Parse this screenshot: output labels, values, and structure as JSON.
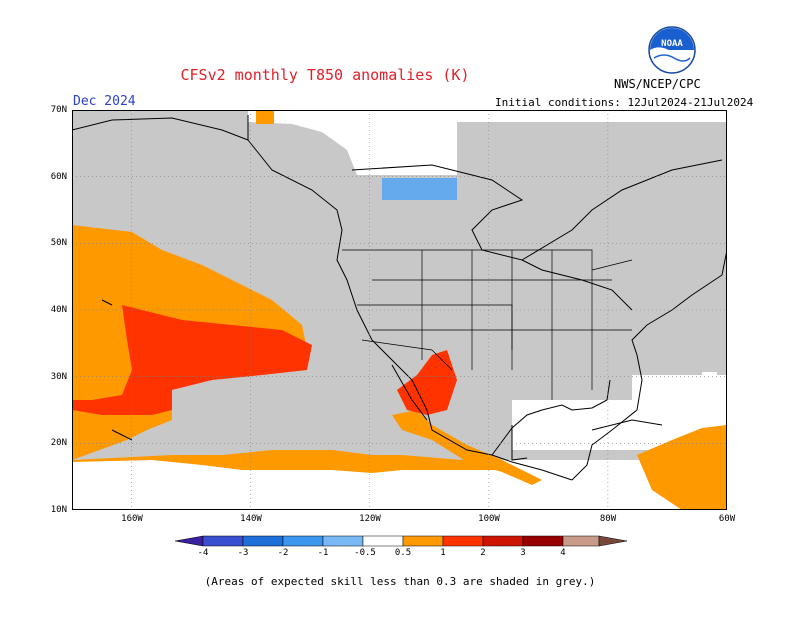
{
  "header": {
    "title": "CFSv2 monthly T850 anomalies (K)",
    "month": "Dec 2024",
    "initial_conditions": "Initial conditions: 12Jul2024-21Jul2024",
    "agency": "NWS/NCEP/CPC",
    "logo_text": "NOAA"
  },
  "map": {
    "lat_labels": [
      "70N",
      "60N",
      "50N",
      "40N",
      "30N",
      "20N",
      "10N"
    ],
    "lon_labels": [
      "160W",
      "140W",
      "120W",
      "100W",
      "80W",
      "60W"
    ],
    "grey_color": "#c8c8c8",
    "colors": {
      "pos_1": "#ff9900",
      "pos_2": "#ff3300",
      "neg_1": "#66aaee"
    }
  },
  "colorbar": {
    "labels": [
      "-4",
      "-3",
      "-2",
      "-1",
      "-0.5",
      "0.5",
      "1",
      "2",
      "3",
      "4"
    ],
    "colors": [
      "#3a1fa0",
      "#3a4fd0",
      "#1e6fd8",
      "#3c96ee",
      "#78b8f4",
      "#ffffff",
      "#ff9900",
      "#ff3300",
      "#cc1400",
      "#990000",
      "#c89a8a",
      "#7a4838"
    ]
  },
  "footnote": "(Areas of expected skill less than 0.3 are shaded in grey.)"
}
